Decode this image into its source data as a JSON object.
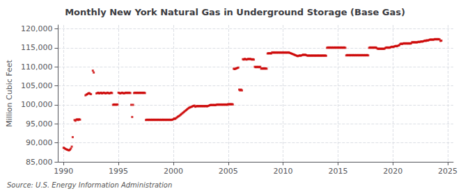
{
  "chart_data": {
    "type": "scatter",
    "title": "Monthly New York Natural Gas in Underground Storage (Base Gas)",
    "ylabel": "Million Cubic Feet",
    "source": "Source: U.S. Energy Information Administration",
    "color": "#cc0000",
    "marker": "square",
    "grid": true,
    "xlim": [
      1989.5,
      2025.5
    ],
    "xticks": [
      1990,
      1995,
      2000,
      2005,
      2010,
      2015,
      2020,
      2025
    ],
    "ylim": [
      85000,
      121000
    ],
    "yticks": [
      {
        "value": 85000,
        "label": "85,000"
      },
      {
        "value": 90000,
        "label": "90,000"
      },
      {
        "value": 95000,
        "label": "95,000"
      },
      {
        "value": 100000,
        "label": "100,000"
      },
      {
        "value": 105000,
        "label": "105,000"
      },
      {
        "value": 110000,
        "label": "110,000"
      },
      {
        "value": 115000,
        "label": "115,000"
      },
      {
        "value": 120000,
        "label": "120,000"
      }
    ],
    "x": [
      1990.0,
      1990.083,
      1990.167,
      1990.25,
      1990.333,
      1990.417,
      1990.5,
      1990.583,
      1990.667,
      1990.75,
      1990.833,
      1991.0,
      1991.083,
      1991.167,
      1991.25,
      1991.333,
      1991.417,
      1991.5,
      1992.0,
      1992.083,
      1992.167,
      1992.25,
      1992.333,
      1992.417,
      1992.5,
      1992.667,
      1992.75,
      1993.0,
      1993.083,
      1993.167,
      1993.25,
      1993.333,
      1993.417,
      1993.5,
      1993.583,
      1993.667,
      1993.75,
      1993.833,
      1993.917,
      1994.0,
      1994.083,
      1994.167,
      1994.25,
      1994.333,
      1994.417,
      1994.5,
      1994.583,
      1994.667,
      1994.75,
      1994.833,
      1994.917,
      1995.0,
      1995.083,
      1995.167,
      1995.25,
      1995.333,
      1995.417,
      1995.5,
      1995.583,
      1995.667,
      1995.75,
      1995.833,
      1995.917,
      1996.0,
      1996.083,
      1996.167,
      1996.25,
      1996.333,
      1996.417,
      1996.5,
      1996.583,
      1996.667,
      1996.75,
      1996.833,
      1996.917,
      1997.0,
      1997.083,
      1997.167,
      1997.25,
      1997.333,
      1997.417,
      1997.5,
      1997.583,
      1997.667,
      1997.75,
      1997.833,
      1997.917,
      1998.0,
      1998.083,
      1998.167,
      1998.25,
      1998.333,
      1998.417,
      1998.5,
      1998.583,
      1998.667,
      1998.75,
      1998.833,
      1998.917,
      1999.0,
      1999.083,
      1999.167,
      1999.25,
      1999.333,
      1999.417,
      1999.5,
      1999.583,
      1999.667,
      1999.75,
      1999.833,
      1999.917,
      2000.0,
      2000.083,
      2000.167,
      2000.25,
      2000.333,
      2000.417,
      2000.5,
      2000.583,
      2000.667,
      2000.75,
      2000.833,
      2000.917,
      2001.0,
      2001.083,
      2001.167,
      2001.25,
      2001.333,
      2001.417,
      2001.5,
      2001.583,
      2001.667,
      2001.75,
      2001.833,
      2001.917,
      2002.0,
      2002.083,
      2002.167,
      2002.25,
      2002.333,
      2002.417,
      2002.5,
      2002.583,
      2002.667,
      2002.75,
      2002.833,
      2002.917,
      2003.0,
      2003.083,
      2003.167,
      2003.25,
      2003.333,
      2003.417,
      2003.5,
      2003.583,
      2003.667,
      2003.75,
      2003.833,
      2003.917,
      2004.0,
      2004.083,
      2004.167,
      2004.25,
      2004.333,
      2004.417,
      2004.5,
      2004.583,
      2004.667,
      2004.75,
      2004.833,
      2004.917,
      2005.0,
      2005.083,
      2005.167,
      2005.25,
      2005.333,
      2005.417,
      2005.5,
      2005.583,
      2005.667,
      2005.75,
      2005.833,
      2005.917,
      2006.0,
      2006.083,
      2006.167,
      2006.25,
      2006.333,
      2006.417,
      2006.5,
      2006.583,
      2006.667,
      2006.75,
      2006.833,
      2006.917,
      2007.0,
      2007.083,
      2007.167,
      2007.25,
      2007.333,
      2007.417,
      2007.5,
      2007.583,
      2007.667,
      2007.75,
      2007.833,
      2007.917,
      2008.0,
      2008.083,
      2008.167,
      2008.25,
      2008.333,
      2008.417,
      2008.5,
      2008.583,
      2008.667,
      2008.75,
      2008.833,
      2008.917,
      2009.0,
      2009.083,
      2009.167,
      2009.25,
      2009.333,
      2009.417,
      2009.5,
      2009.583,
      2009.667,
      2009.75,
      2009.833,
      2009.917,
      2010.0,
      2010.083,
      2010.167,
      2010.25,
      2010.333,
      2010.417,
      2010.5,
      2010.583,
      2010.667,
      2010.75,
      2010.833,
      2010.917,
      2011.0,
      2011.083,
      2011.167,
      2011.25,
      2011.333,
      2011.417,
      2011.5,
      2011.583,
      2011.667,
      2011.75,
      2011.833,
      2011.917,
      2012.0,
      2012.083,
      2012.167,
      2012.25,
      2012.333,
      2012.417,
      2012.5,
      2012.583,
      2012.667,
      2012.75,
      2012.833,
      2012.917,
      2013.0,
      2013.083,
      2013.167,
      2013.25,
      2013.333,
      2013.417,
      2013.5,
      2013.583,
      2013.667,
      2013.75,
      2013.833,
      2013.917,
      2014.0,
      2014.083,
      2014.167,
      2014.25,
      2014.333,
      2014.417,
      2014.5,
      2014.583,
      2014.667,
      2014.75,
      2014.833,
      2014.917,
      2015.0,
      2015.083,
      2015.167,
      2015.25,
      2015.333,
      2015.417,
      2015.5,
      2015.583,
      2015.667,
      2015.75,
      2015.833,
      2015.917,
      2016.0,
      2016.083,
      2016.167,
      2016.25,
      2016.333,
      2016.417,
      2016.5,
      2016.583,
      2016.667,
      2016.75,
      2016.833,
      2016.917,
      2017.0,
      2017.083,
      2017.167,
      2017.25,
      2017.333,
      2017.417,
      2017.5,
      2017.583,
      2017.667,
      2017.75,
      2017.833,
      2017.917,
      2018.0,
      2018.083,
      2018.167,
      2018.25,
      2018.333,
      2018.417,
      2018.5,
      2018.583,
      2018.667,
      2018.75,
      2018.833,
      2018.917,
      2019.0,
      2019.083,
      2019.167,
      2019.25,
      2019.333,
      2019.417,
      2019.5,
      2019.583,
      2019.667,
      2019.75,
      2019.833,
      2019.917,
      2020.0,
      2020.083,
      2020.167,
      2020.25,
      2020.333,
      2020.417,
      2020.5,
      2020.583,
      2020.667,
      2020.75,
      2020.833,
      2020.917,
      2021.0,
      2021.083,
      2021.167,
      2021.25,
      2021.333,
      2021.417,
      2021.5,
      2021.583,
      2021.667,
      2021.75,
      2021.833,
      2021.917,
      2022.0,
      2022.083,
      2022.167,
      2022.25,
      2022.333,
      2022.417,
      2022.5,
      2022.583,
      2022.667,
      2022.75,
      2022.833,
      2022.917,
      2023.0,
      2023.083,
      2023.167,
      2023.25,
      2023.333,
      2023.417,
      2023.5,
      2023.583,
      2023.667,
      2023.75,
      2023.833,
      2023.917,
      2024.0,
      2024.083,
      2024.167,
      2024.25,
      2024.333,
      2024.417
    ],
    "values": [
      88700,
      88600,
      88400,
      88300,
      88200,
      88100,
      88000,
      88200,
      88500,
      89000,
      91500,
      96000,
      95800,
      96100,
      96200,
      96000,
      96200,
      96100,
      102500,
      102700,
      102800,
      103000,
      103100,
      102900,
      102800,
      109000,
      108500,
      103000,
      103100,
      103200,
      103000,
      103100,
      103200,
      103000,
      103100,
      103200,
      103100,
      103000,
      103100,
      103200,
      103100,
      103000,
      103100,
      103200,
      103100,
      100000,
      100100,
      100000,
      100100,
      100000,
      100100,
      103200,
      103100,
      103000,
      103100,
      103200,
      103100,
      103000,
      103100,
      103200,
      103100,
      103200,
      103100,
      103200,
      103100,
      100000,
      96800,
      100000,
      103100,
      103200,
      103100,
      103200,
      103100,
      103200,
      103100,
      103200,
      103100,
      103200,
      103100,
      103200,
      103100,
      96000,
      96100,
      96000,
      96100,
      96000,
      96100,
      96000,
      96100,
      96000,
      96100,
      96000,
      96100,
      96000,
      96100,
      96000,
      96100,
      96000,
      96100,
      96000,
      96100,
      96000,
      96100,
      96000,
      96100,
      96000,
      96100,
      96000,
      96100,
      96000,
      96100,
      96200,
      96400,
      96300,
      96500,
      96700,
      96900,
      97000,
      97200,
      97400,
      97600,
      97800,
      98000,
      98200,
      98400,
      98600,
      98800,
      99000,
      99200,
      99300,
      99400,
      99500,
      99600,
      99700,
      99800,
      99500,
      99600,
      99700,
      99600,
      99700,
      99600,
      99700,
      99600,
      99700,
      99600,
      99700,
      99600,
      99700,
      99600,
      99700,
      99800,
      99900,
      100000,
      99900,
      100000,
      99900,
      100000,
      99900,
      100000,
      100100,
      100000,
      100100,
      100000,
      100100,
      100000,
      100100,
      100000,
      100100,
      100000,
      100100,
      100000,
      100200,
      100100,
      100200,
      100100,
      100200,
      100100,
      109500,
      109400,
      109500,
      109600,
      109700,
      109800,
      104000,
      103800,
      104000,
      103800,
      112000,
      111900,
      112100,
      112000,
      111900,
      112000,
      112100,
      112000,
      112100,
      112000,
      111900,
      112000,
      111900,
      110000,
      109900,
      110000,
      109900,
      110000,
      109900,
      110000,
      109500,
      109600,
      109500,
      109600,
      109500,
      109600,
      109500,
      113500,
      113600,
      113500,
      113600,
      113500,
      113800,
      113700,
      113800,
      113700,
      113800,
      113700,
      113800,
      113700,
      113800,
      113700,
      113800,
      113700,
      113800,
      113700,
      113800,
      113700,
      113800,
      113700,
      113800,
      113700,
      113600,
      113500,
      113400,
      113300,
      113200,
      113100,
      113000,
      112900,
      112800,
      112900,
      113000,
      112900,
      113000,
      113100,
      113200,
      113100,
      113200,
      113100,
      113000,
      112900,
      113000,
      112900,
      113000,
      112900,
      113000,
      112900,
      113000,
      112900,
      113000,
      112900,
      113000,
      112900,
      113000,
      112900,
      113000,
      112900,
      113000,
      112900,
      113000,
      112900,
      115000,
      115100,
      115000,
      115100,
      115000,
      115100,
      115000,
      115100,
      115000,
      115100,
      115000,
      115100,
      115000,
      115100,
      115000,
      115100,
      115000,
      115100,
      115000,
      115100,
      115000,
      113000,
      113100,
      113000,
      113100,
      113000,
      113100,
      113000,
      113100,
      113000,
      113100,
      113000,
      113100,
      113000,
      113100,
      113000,
      113100,
      113000,
      113100,
      113000,
      113100,
      113000,
      113100,
      113000,
      113100,
      113000,
      115000,
      115100,
      115000,
      115100,
      115000,
      115100,
      115000,
      115100,
      115000,
      114800,
      114700,
      114800,
      114700,
      114800,
      114700,
      114800,
      114700,
      114800,
      115000,
      115100,
      115000,
      115100,
      115000,
      115100,
      115200,
      115300,
      115200,
      115300,
      115400,
      115500,
      115400,
      115500,
      115600,
      115700,
      116000,
      116100,
      116000,
      116100,
      116200,
      116100,
      116200,
      116100,
      116200,
      116100,
      116200,
      116100,
      116200,
      116500,
      116400,
      116500,
      116400,
      116500,
      116400,
      116500,
      116600,
      116500,
      116600,
      116700,
      116600,
      116700,
      116800,
      116900,
      116800,
      117000,
      116900,
      117000,
      117100,
      117200,
      117100,
      117200,
      117100,
      117200,
      117300,
      117200,
      117300,
      117200,
      117300,
      117200,
      116800,
      116900
    ]
  }
}
